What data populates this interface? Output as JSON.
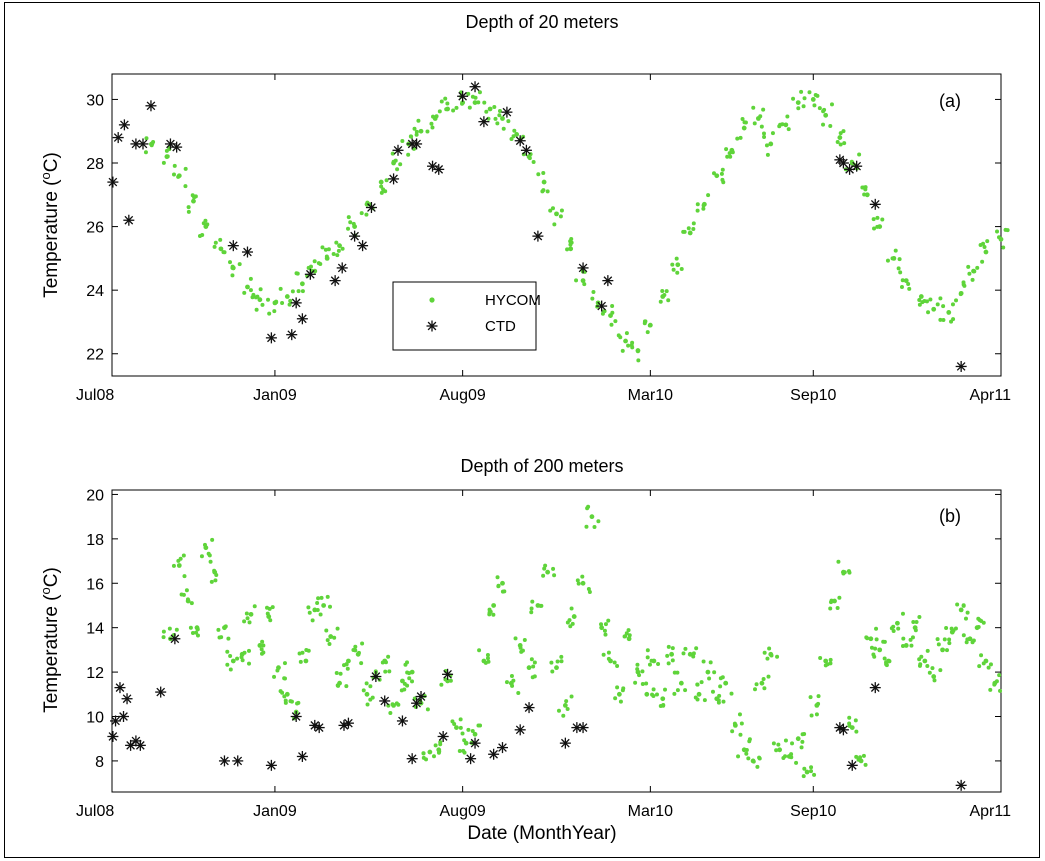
{
  "chart_data": [
    {
      "type": "scatter",
      "panel": "(a)",
      "title": "Depth of 20 meters",
      "ylabel": "Temperature (°C)",
      "xlabel": "",
      "x_ticks": [
        "Jul08",
        "Jan09",
        "Aug09",
        "Mar10",
        "Sep10",
        "Apr11"
      ],
      "y_ticks": [
        22,
        24,
        26,
        28,
        30
      ],
      "xlim": [
        "2008-07-01",
        "2011-04-01"
      ],
      "ylim": [
        21.3,
        30.8
      ],
      "grid": false,
      "legend": {
        "placement": "center",
        "entries": [
          {
            "name": "HYCOM",
            "marker": "dot",
            "color": "#5fd43a"
          },
          {
            "name": "CTD",
            "marker": "star",
            "color": "#111111"
          }
        ]
      },
      "series": [
        {
          "name": "HYCOM",
          "color": "#5fd43a",
          "marker": "dot",
          "x": [
            "2008-08-15",
            "2008-09-01",
            "2008-09-15",
            "2008-10-01",
            "2008-10-15",
            "2008-11-01",
            "2008-11-15",
            "2008-12-01",
            "2008-12-15",
            "2009-01-01",
            "2009-01-15",
            "2009-02-01",
            "2009-02-15",
            "2009-03-01",
            "2009-03-15",
            "2009-04-01",
            "2009-04-15",
            "2009-05-01",
            "2009-05-15",
            "2009-06-01",
            "2009-06-15",
            "2009-07-01",
            "2009-07-15",
            "2009-08-01",
            "2009-08-15",
            "2009-09-01",
            "2009-09-15",
            "2009-10-01",
            "2009-10-15",
            "2009-11-01",
            "2009-11-15",
            "2009-12-01",
            "2009-12-15",
            "2010-01-01",
            "2010-01-15",
            "2010-02-01",
            "2010-02-15",
            "2010-03-01",
            "2010-03-15",
            "2010-04-01",
            "2010-04-15",
            "2010-05-01",
            "2010-05-15",
            "2010-06-01",
            "2010-06-15",
            "2010-07-01",
            "2010-07-15",
            "2010-08-01",
            "2010-08-15",
            "2010-09-01",
            "2010-09-15",
            "2010-10-01",
            "2010-10-15",
            "2010-11-01",
            "2010-11-15",
            "2010-12-01",
            "2010-12-15",
            "2011-01-01",
            "2011-01-15",
            "2011-02-01",
            "2011-02-15",
            "2011-03-01",
            "2011-03-15",
            "2011-04-01"
          ],
          "values": [
            28.6,
            28.2,
            27.6,
            26.8,
            26.0,
            25.3,
            24.7,
            24.1,
            23.7,
            23.6,
            23.8,
            24.2,
            24.6,
            25.0,
            25.4,
            26.0,
            26.7,
            27.4,
            28.0,
            28.6,
            29.0,
            29.4,
            29.7,
            29.9,
            29.9,
            29.7,
            29.4,
            28.9,
            28.2,
            27.4,
            26.4,
            25.3,
            24.3,
            23.6,
            23.2,
            22.4,
            22.1,
            22.9,
            23.8,
            24.8,
            25.8,
            26.7,
            27.6,
            28.4,
            29.1,
            29.4,
            28.6,
            29.2,
            29.9,
            30.0,
            29.5,
            28.8,
            28.0,
            27.0,
            26.0,
            25.0,
            24.3,
            23.8,
            23.4,
            23.3,
            23.9,
            24.6,
            25.2,
            25.6
          ]
        },
        {
          "name": "CTD",
          "color": "#111111",
          "marker": "star",
          "x": [
            "2008-07-02",
            "2008-07-08",
            "2008-07-15",
            "2008-07-20",
            "2008-07-28",
            "2008-08-05",
            "2008-08-14",
            "2008-09-05",
            "2008-09-12",
            "2008-11-15",
            "2008-12-01",
            "2008-12-28",
            "2009-01-20",
            "2009-01-25",
            "2009-02-01",
            "2009-02-10",
            "2009-03-10",
            "2009-03-18",
            "2009-04-01",
            "2009-04-10",
            "2009-04-20",
            "2009-05-15",
            "2009-05-20",
            "2009-06-05",
            "2009-06-10",
            "2009-06-28",
            "2009-07-05",
            "2009-08-01",
            "2009-08-15",
            "2009-08-25",
            "2009-09-20",
            "2009-10-05",
            "2009-10-12",
            "2009-10-25",
            "2009-12-15",
            "2010-01-05",
            "2010-01-12",
            "2010-10-01",
            "2010-10-05",
            "2010-10-12",
            "2010-10-20",
            "2010-11-10",
            "2011-02-15"
          ],
          "values": [
            27.4,
            28.8,
            29.2,
            26.2,
            28.6,
            28.6,
            29.8,
            28.6,
            28.5,
            25.4,
            25.2,
            22.5,
            22.6,
            23.6,
            23.1,
            24.5,
            24.3,
            24.7,
            25.7,
            25.4,
            26.6,
            27.5,
            28.4,
            28.6,
            28.6,
            27.9,
            27.8,
            30.1,
            30.4,
            29.3,
            29.6,
            28.7,
            28.4,
            25.7,
            24.7,
            23.5,
            24.3,
            28.1,
            28.0,
            27.8,
            27.9,
            26.7,
            21.6
          ]
        }
      ]
    },
    {
      "type": "scatter",
      "panel": "(b)",
      "title": "Depth of 200 meters",
      "ylabel": "Temperature (°C)",
      "xlabel": "Date (MonthYear)",
      "x_ticks": [
        "Jul08",
        "Jan09",
        "Aug09",
        "Mar10",
        "Sep10",
        "Apr11"
      ],
      "y_ticks": [
        8,
        10,
        12,
        14,
        16,
        18,
        20
      ],
      "xlim": [
        "2008-07-01",
        "2011-04-01"
      ],
      "ylim": [
        6.6,
        20.2
      ],
      "grid": false,
      "series": [
        {
          "name": "HYCOM",
          "color": "#5fd43a",
          "marker": "dot",
          "x": [
            "2008-09-05",
            "2008-09-15",
            "2008-09-25",
            "2008-10-05",
            "2008-10-15",
            "2008-10-25",
            "2008-11-05",
            "2008-11-15",
            "2008-11-25",
            "2008-12-05",
            "2008-12-15",
            "2008-12-25",
            "2009-01-05",
            "2009-01-15",
            "2009-01-25",
            "2009-02-05",
            "2009-02-15",
            "2009-02-25",
            "2009-03-05",
            "2009-03-15",
            "2009-03-25",
            "2009-04-05",
            "2009-04-15",
            "2009-04-25",
            "2009-05-05",
            "2009-05-15",
            "2009-05-25",
            "2009-06-05",
            "2009-06-15",
            "2009-06-25",
            "2009-07-05",
            "2009-07-15",
            "2009-07-25",
            "2009-08-05",
            "2009-08-15",
            "2009-08-25",
            "2009-09-05",
            "2009-09-15",
            "2009-09-25",
            "2009-10-05",
            "2009-10-15",
            "2009-10-25",
            "2009-11-05",
            "2009-11-15",
            "2009-11-25",
            "2009-12-05",
            "2009-12-15",
            "2009-12-25",
            "2010-01-05",
            "2010-01-15",
            "2010-01-25",
            "2010-02-05",
            "2010-02-15",
            "2010-02-25",
            "2010-03-05",
            "2010-03-15",
            "2010-03-25",
            "2010-04-05",
            "2010-04-15",
            "2010-04-25",
            "2010-05-05",
            "2010-05-15",
            "2010-05-25",
            "2010-06-05",
            "2010-06-15",
            "2010-06-25",
            "2010-07-05",
            "2010-07-15",
            "2010-07-25",
            "2010-08-05",
            "2010-08-15",
            "2010-08-25",
            "2010-09-05",
            "2010-09-15",
            "2010-09-25",
            "2010-10-05",
            "2010-10-15",
            "2010-10-25",
            "2010-11-05",
            "2010-11-15",
            "2010-11-25",
            "2010-12-05",
            "2010-12-15",
            "2010-12-25",
            "2011-01-05",
            "2011-01-15",
            "2011-01-25",
            "2011-02-05",
            "2011-02-15",
            "2011-02-25",
            "2011-03-05",
            "2011-03-15",
            "2011-03-25"
          ],
          "values": [
            13.5,
            16.8,
            15.2,
            14.0,
            17.6,
            16.5,
            14.0,
            12.5,
            12.8,
            14.6,
            13.2,
            14.5,
            12.2,
            11.0,
            10.2,
            12.5,
            14.8,
            15.0,
            13.6,
            11.5,
            12.5,
            12.8,
            11.0,
            11.8,
            12.5,
            10.5,
            11.6,
            12.0,
            10.6,
            8.4,
            8.5,
            11.6,
            9.5,
            8.8,
            9.2,
            12.5,
            15.0,
            16.0,
            11.5,
            13.2,
            12.2,
            15.0,
            16.5,
            12.2,
            10.5,
            14.5,
            16.0,
            19.0,
            14.0,
            12.5,
            11.0,
            13.5,
            12.0,
            11.0,
            12.5,
            10.8,
            12.8,
            11.5,
            12.8,
            11.0,
            12.0,
            10.8,
            11.5,
            9.6,
            8.5,
            8.0,
            11.5,
            12.8,
            8.5,
            8.2,
            9.0,
            7.5,
            10.5,
            12.5,
            15.2,
            16.5,
            9.5,
            8.0,
            13.5,
            13.0,
            12.5,
            14.2,
            13.2,
            14.0,
            12.5,
            11.8,
            13.0,
            13.8,
            14.8,
            13.5,
            14.0,
            12.5,
            11.5
          ]
        },
        {
          "name": "CTD",
          "color": "#111111",
          "marker": "star",
          "x": [
            "2008-07-02",
            "2008-07-05",
            "2008-07-10",
            "2008-07-14",
            "2008-07-18",
            "2008-07-22",
            "2008-07-28",
            "2008-08-02",
            "2008-08-25",
            "2008-09-10",
            "2008-11-05",
            "2008-11-20",
            "2008-12-28",
            "2009-01-25",
            "2009-02-01",
            "2009-02-15",
            "2009-02-20",
            "2009-03-20",
            "2009-03-25",
            "2009-04-25",
            "2009-05-05",
            "2009-05-25",
            "2009-06-05",
            "2009-06-10",
            "2009-06-15",
            "2009-07-10",
            "2009-07-15",
            "2009-08-10",
            "2009-08-15",
            "2009-09-05",
            "2009-09-15",
            "2009-10-05",
            "2009-10-15",
            "2009-11-25",
            "2009-12-08",
            "2009-12-15",
            "2010-10-01",
            "2010-10-05",
            "2010-10-15",
            "2010-11-10",
            "2011-02-15"
          ],
          "values": [
            9.1,
            9.8,
            11.3,
            10.0,
            10.8,
            8.7,
            8.9,
            8.7,
            11.1,
            13.5,
            8.0,
            8.0,
            7.8,
            10.0,
            8.2,
            9.6,
            9.5,
            9.6,
            9.7,
            11.8,
            10.7,
            9.8,
            8.1,
            10.6,
            10.9,
            9.1,
            11.9,
            8.1,
            8.8,
            8.3,
            8.6,
            9.4,
            10.4,
            8.8,
            9.5,
            9.5,
            9.5,
            9.4,
            7.8,
            11.3,
            6.9
          ]
        }
      ]
    }
  ]
}
